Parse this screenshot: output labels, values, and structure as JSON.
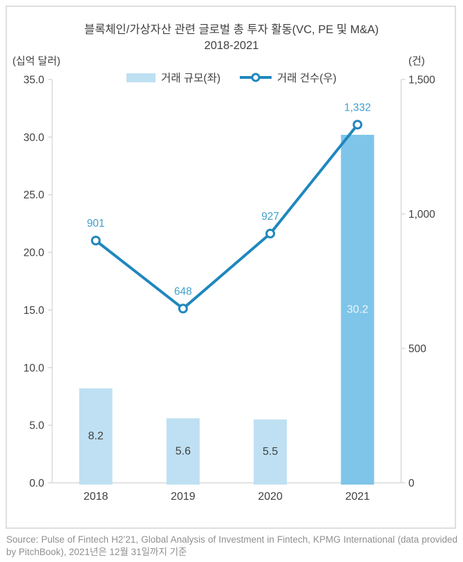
{
  "header": {
    "title_line1": "블록체인/가상자산 관련 글로벌 총 투자 활동(VC, PE 및 M&A)",
    "title_line2": "2018-2021"
  },
  "chart_data": {
    "type": "bar+line combo",
    "categories": [
      "2018",
      "2019",
      "2020",
      "2021"
    ],
    "series": [
      {
        "name": "거래 규모(좌)",
        "type": "bar",
        "axis": "left",
        "values": [
          8.2,
          5.6,
          5.5,
          30.2
        ],
        "value_labels": [
          "8.2",
          "5.6",
          "5.5",
          "30.2"
        ],
        "bar_colors": [
          "#BEE0F2",
          "#BEE0F2",
          "#BEE0F2",
          "#7EC5E9"
        ],
        "label_colors": [
          "#3F3F3F",
          "#3F3F3F",
          "#3F3F3F",
          "#EDF6FC"
        ]
      },
      {
        "name": "거래 건수(우)",
        "type": "line",
        "axis": "right",
        "values": [
          901,
          648,
          927,
          1332
        ],
        "value_labels": [
          "901",
          "648",
          "927",
          "1,332"
        ],
        "color": "#1F87BD",
        "label_color": "#41A0CB",
        "marker": "open-circle"
      }
    ],
    "left_axis": {
      "unit_label": "(십억 달러)",
      "min": 0,
      "max": 35,
      "step": 5,
      "tick_labels": [
        "35.0",
        "30.0",
        "25.0",
        "20.0",
        "15.0",
        "10.0",
        "5.0",
        "0.0"
      ]
    },
    "right_axis": {
      "unit_label": "(건)",
      "min": 0,
      "max": 1500,
      "step": 500,
      "tick_labels": [
        "1,500",
        "1,000",
        "500",
        "0"
      ]
    },
    "grid": "off",
    "legend_position": "top-center"
  },
  "colors": {
    "axis": "#D9D9D9",
    "text": "#3F3F3F",
    "footer_text": "#8F8F8F",
    "border": "#DEDEDE"
  },
  "footer": {
    "source": "Source: Pulse of Fintech H2’21, Global Analysis of Investment in Fintech, KPMG International (data provided by PitchBook), 2021년은 12월 31일까지 기준"
  }
}
